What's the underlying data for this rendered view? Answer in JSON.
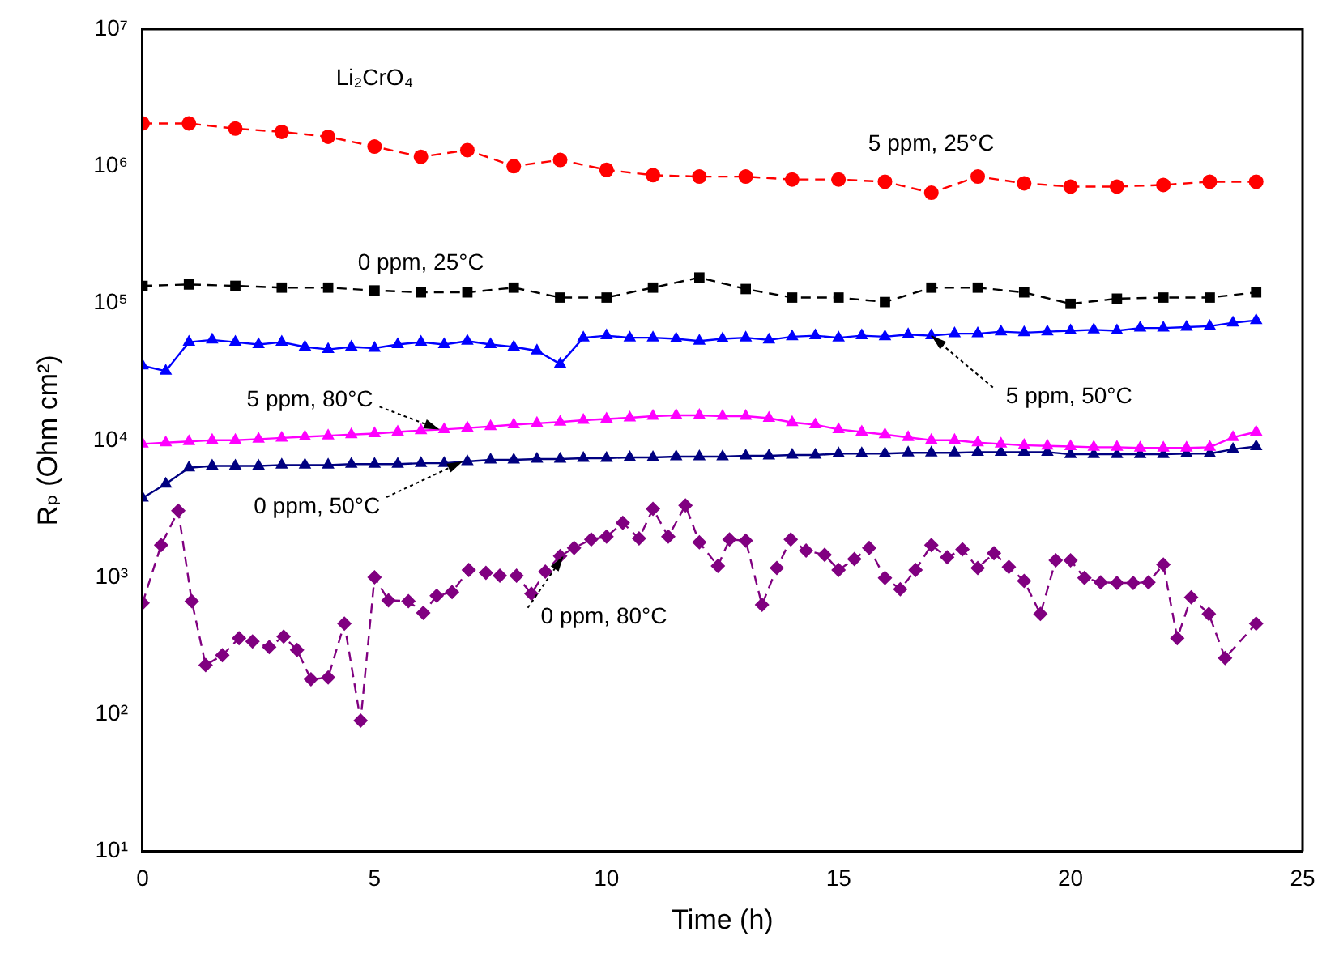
{
  "chart_data": {
    "type": "line",
    "xlabel": "Time (h)",
    "ylabel": "Rₚ (Ohm cm²)",
    "log": "y",
    "grid": false,
    "legend": false,
    "xlim": [
      0,
      25
    ],
    "xticks": [
      0,
      5,
      10,
      15,
      20,
      25
    ],
    "ylim": [
      10,
      10000000
    ],
    "yticks": [
      {
        "value": 10,
        "label": "10¹"
      },
      {
        "value": 100,
        "label": "10²"
      },
      {
        "value": 1000,
        "label": "10³"
      },
      {
        "value": 10000,
        "label": "10⁴"
      },
      {
        "value": 100000,
        "label": "10⁵"
      },
      {
        "value": 1000000,
        "label": "10⁶"
      },
      {
        "value": 10000000,
        "label": "10⁷"
      }
    ],
    "series": [
      {
        "color": "#ff0000",
        "marker": "circle",
        "line_style": "dashed",
        "x": [
          0,
          1,
          2,
          3,
          4,
          5,
          6,
          7,
          8,
          9,
          10,
          11,
          12,
          13,
          14,
          15,
          16,
          17,
          18,
          19,
          20,
          21,
          22,
          23,
          24
        ],
        "values": [
          2050000,
          2050000,
          1880000,
          1780000,
          1640000,
          1390000,
          1170000,
          1310000,
          1000000,
          1110000,
          940000,
          860000,
          840000,
          840000,
          800000,
          800000,
          770000,
          640000,
          840000,
          750000,
          710000,
          710000,
          730000,
          770000,
          770000
        ]
      },
      {
        "color": "#000000",
        "marker": "square",
        "line_style": "dashed",
        "x": [
          0,
          1,
          2,
          3,
          4,
          5,
          6,
          7,
          8,
          9,
          10,
          11,
          12,
          13,
          14,
          15,
          16,
          17,
          18,
          19,
          20,
          21,
          22,
          23,
          24
        ],
        "values": [
          134000,
          137000,
          134000,
          130000,
          130000,
          124000,
          120000,
          120000,
          130000,
          110000,
          110000,
          130000,
          154000,
          127000,
          110000,
          110000,
          102000,
          130000,
          130000,
          120000,
          99000,
          108000,
          110000,
          110000,
          120000
        ]
      },
      {
        "color": "#0000ff",
        "marker": "triangle",
        "line_style": "solid",
        "x": [
          0,
          0.5,
          1,
          1.5,
          2,
          2.5,
          3,
          3.5,
          4,
          4.5,
          5,
          5.5,
          6,
          6.5,
          7,
          7.5,
          8,
          8.5,
          9,
          9.5,
          10,
          10.5,
          11,
          11.5,
          12,
          12.5,
          13,
          13.5,
          14,
          14.5,
          15,
          15.5,
          16,
          16.5,
          17,
          17.5,
          18,
          18.5,
          19,
          19.5,
          20,
          20.5,
          21,
          21.5,
          22,
          22.5,
          23,
          23.5,
          24
        ],
        "values": [
          35000,
          32000,
          52000,
          54000,
          52000,
          50000,
          52000,
          48000,
          46000,
          48000,
          47000,
          50000,
          52000,
          50000,
          53000,
          50000,
          48000,
          45000,
          36000,
          56000,
          58000,
          56000,
          56000,
          55000,
          53000,
          55000,
          56000,
          54000,
          57000,
          58000,
          56000,
          58000,
          57000,
          59000,
          58000,
          60000,
          60000,
          62000,
          61000,
          62000,
          63000,
          64000,
          63000,
          66000,
          66000,
          67000,
          68000,
          72000,
          75000
        ]
      },
      {
        "color": "#ff00ff",
        "marker": "triangle",
        "line_style": "solid",
        "x": [
          0,
          0.5,
          1,
          1.5,
          2,
          2.5,
          3,
          3.5,
          4,
          4.5,
          5,
          5.5,
          6,
          6.5,
          7,
          7.5,
          8,
          8.5,
          9,
          9.5,
          10,
          10.5,
          11,
          11.5,
          12,
          12.5,
          13,
          13.5,
          14,
          14.5,
          15,
          15.5,
          16,
          16.5,
          17,
          17.5,
          18,
          18.5,
          19,
          19.5,
          20,
          20.5,
          21,
          21.5,
          22,
          22.5,
          23,
          23.5,
          24
        ],
        "values": [
          9400,
          9600,
          9800,
          10000,
          10000,
          10200,
          10400,
          10600,
          10800,
          11000,
          11200,
          11500,
          11800,
          12000,
          12300,
          12600,
          13000,
          13300,
          13600,
          14000,
          14300,
          14600,
          15000,
          15200,
          15200,
          15000,
          15000,
          14500,
          13500,
          13000,
          12000,
          11500,
          11000,
          10500,
          10000,
          10000,
          9600,
          9400,
          9200,
          9100,
          9000,
          8900,
          8900,
          8800,
          8800,
          8800,
          8900,
          10500,
          11500
        ]
      },
      {
        "color": "#000080",
        "marker": "triangle",
        "line_style": "solid",
        "x": [
          0,
          0.5,
          1,
          1.5,
          2,
          2.5,
          3,
          3.5,
          4,
          4.5,
          5,
          5.5,
          6,
          6.5,
          7,
          7.5,
          8,
          8.5,
          9,
          9.5,
          10,
          10.5,
          11,
          11.5,
          12,
          12.5,
          13,
          13.5,
          14,
          14.5,
          15,
          15.5,
          16,
          16.5,
          17,
          17.5,
          18,
          18.5,
          19,
          19.5,
          20,
          20.5,
          21,
          21.5,
          22,
          22.5,
          23,
          23.5,
          24
        ],
        "values": [
          3800,
          4800,
          6300,
          6500,
          6500,
          6500,
          6600,
          6600,
          6600,
          6700,
          6700,
          6700,
          6800,
          6800,
          7000,
          7200,
          7200,
          7300,
          7300,
          7400,
          7400,
          7500,
          7500,
          7600,
          7600,
          7600,
          7700,
          7700,
          7800,
          7800,
          8000,
          8000,
          8000,
          8100,
          8100,
          8100,
          8200,
          8200,
          8200,
          8200,
          7900,
          7900,
          7900,
          7900,
          7900,
          8000,
          8000,
          8600,
          9000
        ]
      },
      {
        "color": "#800080",
        "marker": "diamond",
        "line_style": "dashed",
        "x": [
          0,
          0.4,
          0.77,
          1.06,
          1.36,
          1.72,
          2.08,
          2.37,
          2.73,
          3.04,
          3.33,
          3.63,
          4.0,
          4.35,
          4.7,
          5.0,
          5.3,
          5.73,
          6.05,
          6.34,
          6.67,
          7.03,
          7.4,
          7.7,
          8.06,
          8.38,
          8.68,
          9.0,
          9.3,
          9.67,
          10.0,
          10.35,
          10.7,
          11.0,
          11.33,
          11.7,
          12.0,
          12.4,
          12.65,
          13.0,
          13.35,
          13.67,
          13.97,
          14.3,
          14.7,
          15.0,
          15.34,
          15.66,
          16.0,
          16.33,
          16.66,
          17.0,
          17.34,
          17.67,
          18.0,
          18.35,
          18.67,
          19.0,
          19.35,
          19.68,
          20.0,
          20.3,
          20.65,
          21.0,
          21.35,
          21.68,
          22.0,
          22.3,
          22.6,
          22.98,
          23.33,
          24.0
        ],
        "values": [
          650,
          1720,
          3060,
          670,
          229,
          270,
          360,
          340,
          310,
          370,
          295,
          180,
          186,
          460,
          90,
          1000,
          680,
          670,
          550,
          735,
          780,
          1130,
          1080,
          1030,
          1030,
          760,
          1100,
          1430,
          1640,
          1890,
          1980,
          2500,
          1920,
          3160,
          1980,
          3350,
          1800,
          1210,
          1890,
          1850,
          630,
          1170,
          1890,
          1570,
          1460,
          1130,
          1360,
          1640,
          990,
          820,
          1130,
          1720,
          1400,
          1600,
          1170,
          1500,
          1190,
          940,
          540,
          1330,
          1330,
          990,
          920,
          910,
          910,
          920,
          1240,
          360,
          715,
          540,
          258,
          460
        ]
      }
    ],
    "annotations": [
      "Li₂CrO₄",
      {
        "text": "5 ppm, 25°C",
        "x": 17,
        "y": 640000
      },
      {
        "text": "0 ppm, 25°C",
        "x": 6,
        "y": 120000
      },
      {
        "text": "5 ppm, 50°C",
        "x": 17,
        "y": 58000
      },
      {
        "text": "5 ppm, 80°C",
        "x": 6.4,
        "y": 12000
      },
      {
        "text": "0 ppm, 50°C",
        "x": 6.9,
        "y": 7000
      },
      {
        "text": "0 ppm, 80°C",
        "x": 9.07,
        "y": 1430
      }
    ]
  }
}
